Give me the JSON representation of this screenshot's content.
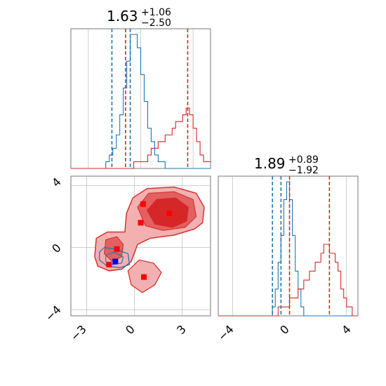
{
  "chart_data": [
    {
      "type": "histogram",
      "panel": "marginal-param-1",
      "title": {
        "median": "1.63",
        "plus": "+1.06",
        "minus": "−2.50"
      },
      "xlim": [
        -4.0,
        4.0
      ],
      "bin_edges_start": -4.0,
      "bin_width": 0.2,
      "series": [
        {
          "color": "#1f77b4",
          "counts": [
            0,
            0,
            0,
            0,
            0,
            0,
            0,
            0,
            0,
            0,
            1,
            2,
            3,
            5,
            8,
            12,
            16,
            20,
            20,
            18,
            14,
            10,
            6,
            4,
            2,
            1,
            1,
            0,
            0,
            0,
            0,
            0,
            0,
            0,
            0,
            0,
            0,
            0,
            0,
            0
          ],
          "quantiles": [
            -1.65,
            -0.6
          ]
        },
        {
          "color": "#d62728",
          "counts": [
            0,
            0,
            0,
            0,
            0,
            0,
            0,
            0,
            0,
            0,
            0,
            0,
            0,
            0,
            0,
            0,
            0,
            0,
            1,
            1,
            1,
            1,
            2,
            3,
            3,
            4,
            4,
            5,
            5,
            6,
            7,
            7,
            8,
            9,
            8,
            6,
            4,
            2,
            1,
            1
          ],
          "quantiles": [
            -0.87,
            2.69
          ]
        }
      ]
    },
    {
      "type": "histogram",
      "panel": "marginal-param-2",
      "title": {
        "median": "1.89",
        "plus": "+0.89",
        "minus": "−1.92"
      },
      "xlim": [
        -5.0,
        4.8
      ],
      "xticks": [
        "−4",
        "0",
        "4"
      ],
      "bin_edges_start": -5.0,
      "bin_width": 0.2,
      "series": [
        {
          "color": "#1f77b4",
          "counts": [
            0,
            0,
            0,
            0,
            0,
            0,
            0,
            0,
            0,
            0,
            0,
            0,
            0,
            0,
            0,
            0,
            0,
            0,
            0,
            1,
            3,
            6,
            9,
            13,
            15,
            13,
            9,
            5,
            3,
            1,
            0,
            0,
            0,
            0,
            0,
            0,
            0,
            0,
            0,
            0,
            0,
            0,
            0,
            0,
            0,
            0,
            0,
            0,
            0
          ],
          "quantiles": [
            -1.2,
            -0.6
          ]
        },
        {
          "color": "#d62728",
          "counts": [
            0,
            0,
            0,
            0,
            0,
            0,
            0,
            0,
            0,
            0,
            0,
            0,
            0,
            0,
            0,
            0,
            0,
            0,
            0,
            0,
            0,
            1,
            1,
            1,
            1,
            2,
            2,
            2,
            3,
            3,
            4,
            4,
            5,
            5,
            6,
            6,
            7,
            8,
            8,
            7,
            7,
            6,
            5,
            3,
            2,
            1,
            1,
            0,
            0
          ],
          "quantiles": [
            0.0,
            2.8
          ]
        }
      ]
    },
    {
      "type": "contour",
      "panel": "joint-param-1-param-2",
      "xlim": [
        -4.0,
        4.8
      ],
      "ylim": [
        -4.4,
        4.6
      ],
      "xticks": [
        "−3",
        "0",
        "3"
      ],
      "yticks": [
        "−4",
        "0",
        "4"
      ],
      "series": [
        {
          "color": "#d62728",
          "name": ""
        },
        {
          "color": "#1f77b4",
          "name": ""
        }
      ],
      "red_markers": [
        [
          0.55,
          2.8
        ],
        [
          2.2,
          2.2
        ],
        [
          0.4,
          1.6
        ],
        [
          -1.1,
          -0.1
        ],
        [
          -1.6,
          -1.1
        ],
        [
          0.6,
          -1.9
        ]
      ],
      "blue_markers": [
        [
          -1.2,
          -0.9
        ]
      ]
    }
  ]
}
